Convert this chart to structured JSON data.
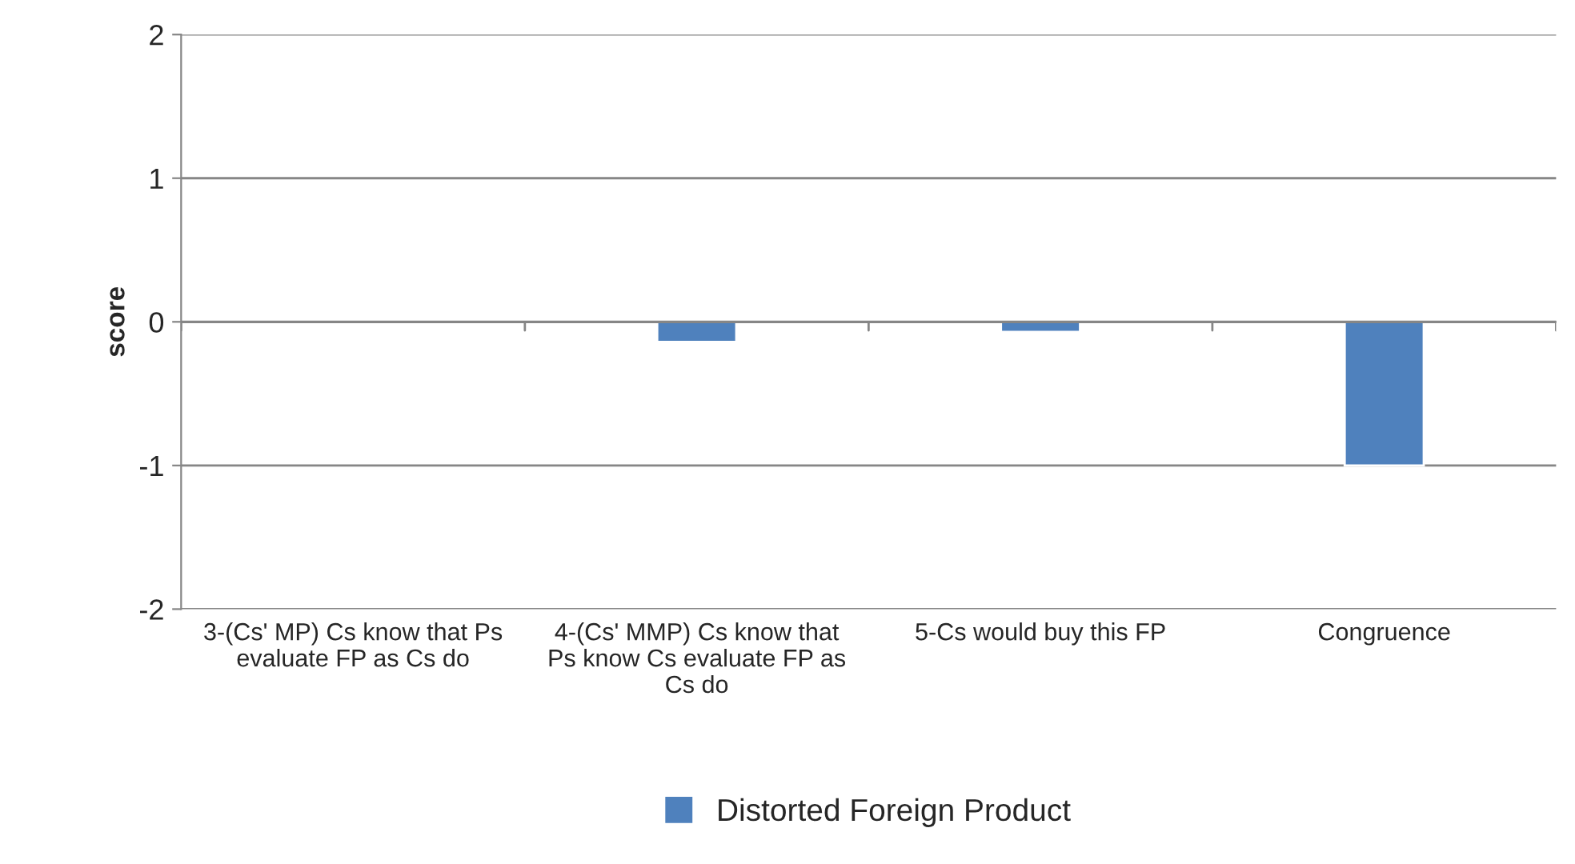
{
  "chart_data": {
    "type": "bar",
    "ylabel": "score",
    "categories": [
      "3-(Cs' MP) Cs know that Ps evaluate FP as Cs do",
      "4-(Cs' MMP) Cs know that Ps know Cs evaluate FP as Cs do",
      "5-Cs would buy this FP",
      "Congruence"
    ],
    "series": [
      {
        "name": "Distorted Foreign Product",
        "color": "#4f81bd",
        "values": [
          null,
          -0.14,
          -0.07,
          -1
        ]
      }
    ],
    "ylim": [
      -2,
      2
    ],
    "yticks": [
      -2,
      -1,
      0,
      1,
      2
    ],
    "grid": "y",
    "legend": "bottom"
  }
}
